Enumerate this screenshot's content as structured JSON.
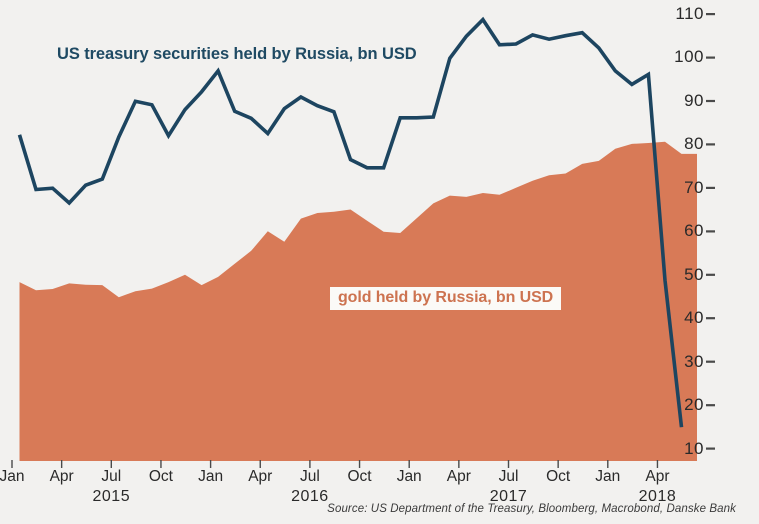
{
  "chart": {
    "title": "US treasury securities held by Russia, bn USD",
    "area_label": "gold held by Russia, bn USD",
    "source": "Source: US Department of the Treasury, Bloomberg, Macrobond, Danske Bank"
  },
  "colors": {
    "background": "#f2f1ef",
    "line": "#1d4560",
    "area": "#d87a57",
    "area_label_text": "#cd7350",
    "area_label_bg": "#fbfaf7",
    "axis_text": "#2a2a2a",
    "tick": "#4a4a4a",
    "source_text": "#3b3b3b"
  },
  "chart_data": {
    "type": "line",
    "x_start": "Jan 2015",
    "x_end": "May 2018",
    "x_step": "month",
    "grid": false,
    "y_axis": {
      "side": "right",
      "min": 10,
      "max": 110,
      "step": 10,
      "tick_labels": [
        "110",
        "100",
        "90",
        "80",
        "70",
        "60",
        "50",
        "40",
        "30",
        "20",
        "10"
      ]
    },
    "x_axis": {
      "quarter_tick_labels": [
        "Jan",
        "Apr",
        "Jul",
        "Oct",
        "Jan",
        "Apr",
        "Jul",
        "Oct",
        "Jan",
        "Apr",
        "Jul",
        "Oct",
        "Jan",
        "Apr"
      ],
      "year_labels": [
        {
          "text": "2015",
          "quarter_index": 2
        },
        {
          "text": "2016",
          "quarter_index": 6
        },
        {
          "text": "2017",
          "quarter_index": 10
        },
        {
          "text": "2018",
          "quarter_index": 13
        }
      ]
    },
    "series": [
      {
        "name": "US treasury securities held by Russia, bn USD",
        "style": "line",
        "color": "#1d4560",
        "values": [
          82.2,
          69.6,
          69.9,
          66.5,
          70.6,
          72.0,
          81.7,
          89.9,
          89.1,
          82.0,
          88.0,
          92.1,
          96.9,
          87.6,
          86.0,
          82.5,
          88.2,
          90.9,
          88.9,
          87.5,
          76.5,
          74.6,
          74.6,
          86.1,
          86.1,
          86.3,
          99.8,
          104.9,
          108.7,
          102.9,
          103.1,
          105.2,
          104.2,
          105.0,
          105.7,
          102.2,
          96.9,
          93.8,
          96.1,
          48.7,
          14.9
        ]
      },
      {
        "name": "gold held by Russia, bn USD",
        "style": "area",
        "color": "#d87a57",
        "values": [
          48.3,
          46.4,
          46.7,
          48.0,
          47.7,
          47.6,
          44.8,
          46.2,
          46.8,
          48.3,
          50.0,
          47.6,
          49.5,
          52.5,
          55.5,
          60.0,
          57.6,
          62.9,
          64.2,
          64.5,
          65.0,
          62.4,
          59.9,
          59.6,
          63.0,
          66.4,
          68.2,
          67.9,
          68.8,
          68.4,
          70.0,
          71.6,
          72.9,
          73.3,
          75.5,
          76.2,
          79.0,
          80.1,
          80.3,
          80.6,
          77.8
        ]
      }
    ]
  }
}
